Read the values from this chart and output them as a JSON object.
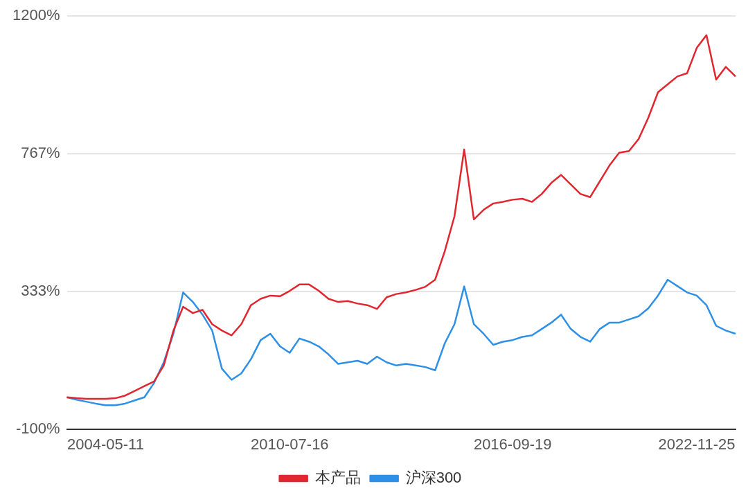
{
  "chart_data": {
    "type": "line",
    "categories": [
      null,
      null,
      null,
      null,
      "2004-05-11",
      null,
      null,
      null,
      null,
      null,
      null,
      null,
      null,
      null,
      null,
      null,
      null,
      null,
      null,
      null,
      null,
      null,
      null,
      "2010-07-16",
      null,
      null,
      null,
      null,
      null,
      null,
      null,
      null,
      null,
      null,
      null,
      null,
      null,
      null,
      null,
      null,
      null,
      null,
      null,
      null,
      null,
      null,
      "2016-09-19",
      null,
      null,
      null,
      null,
      null,
      null,
      null,
      null,
      null,
      null,
      null,
      null,
      null,
      null,
      null,
      null,
      null,
      null,
      "2022-11-25",
      null,
      null,
      null,
      null
    ],
    "series": [
      {
        "name": "本产品",
        "color": "#e0262e",
        "values": [
          0,
          -3,
          -5,
          -5,
          -5,
          -3,
          5,
          20,
          35,
          50,
          100,
          210,
          285,
          265,
          275,
          230,
          210,
          195,
          230,
          290,
          310,
          320,
          318,
          335,
          355,
          355,
          335,
          310,
          300,
          303,
          295,
          290,
          278,
          315,
          325,
          330,
          338,
          348,
          370,
          460,
          570,
          780,
          560,
          590,
          610,
          615,
          622,
          625,
          615,
          640,
          675,
          700,
          670,
          640,
          630,
          680,
          730,
          770,
          775,
          813,
          880,
          960,
          985,
          1010,
          1020,
          1100,
          1140,
          1000,
          1040,
          1010
        ]
      },
      {
        "name": "沪深300",
        "color": "#2e8fe6",
        "values": [
          0,
          -8,
          -14,
          -20,
          -25,
          -25,
          -20,
          -10,
          0,
          45,
          110,
          200,
          330,
          300,
          260,
          210,
          90,
          55,
          75,
          120,
          180,
          200,
          160,
          140,
          185,
          175,
          160,
          135,
          105,
          110,
          115,
          105,
          128,
          110,
          100,
          105,
          100,
          95,
          85,
          170,
          230,
          349,
          230,
          200,
          165,
          175,
          180,
          190,
          195,
          215,
          235,
          260,
          215,
          190,
          175,
          215,
          235,
          235,
          245,
          255,
          280,
          320,
          370,
          350,
          330,
          320,
          290,
          225,
          210,
          200
        ]
      }
    ],
    "ylim": [
      -100,
      1200
    ],
    "yticks": [
      {
        "value": -100,
        "label": "-100%"
      },
      {
        "value": 333,
        "label": "333%"
      },
      {
        "value": 767,
        "label": "767%"
      },
      {
        "value": 1200,
        "label": "1200%"
      }
    ],
    "grid": "y",
    "legend": "bottom",
    "marker": "none",
    "line_style": "solid"
  }
}
